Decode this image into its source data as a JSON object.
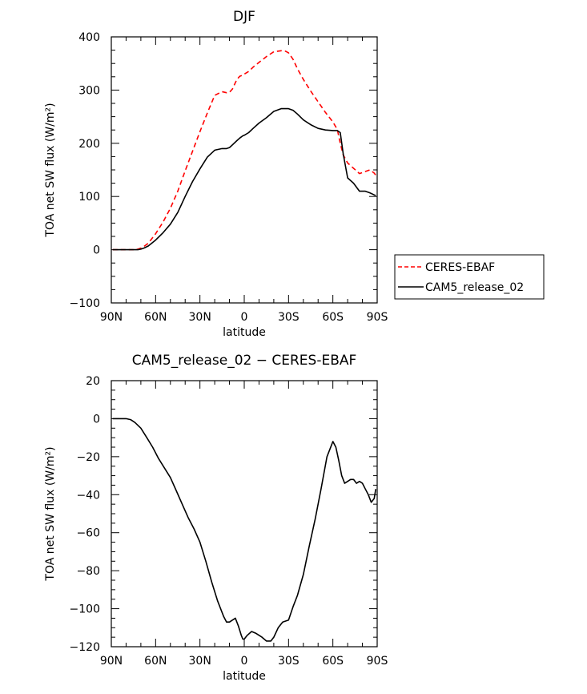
{
  "chart_data": [
    {
      "type": "line",
      "title": "DJF",
      "xlabel": "latitude",
      "ylabel": "TOA net SW flux (W/m²)",
      "xlim": [
        90,
        -90
      ],
      "ylim": [
        -100,
        400
      ],
      "xticks": [
        {
          "value": 90,
          "label": "90N"
        },
        {
          "value": 60,
          "label": "60N"
        },
        {
          "value": 30,
          "label": "30N"
        },
        {
          "value": 0,
          "label": "0"
        },
        {
          "value": -30,
          "label": "30S"
        },
        {
          "value": -60,
          "label": "60S"
        },
        {
          "value": -90,
          "label": "90S"
        }
      ],
      "yticks": [
        {
          "value": 400,
          "label": "400"
        },
        {
          "value": 300,
          "label": "300"
        },
        {
          "value": 200,
          "label": "200"
        },
        {
          "value": 100,
          "label": "100"
        },
        {
          "value": 0,
          "label": "0"
        },
        {
          "value": -100,
          "label": "−100"
        }
      ],
      "legend": {
        "placement": "right"
      },
      "series": [
        {
          "name": "CERES-EBAF",
          "color": "#ff0000",
          "dash": "dashed",
          "x": [
            89,
            85,
            80,
            75,
            72,
            70,
            68,
            65,
            60,
            55,
            50,
            45,
            40,
            35,
            30,
            25,
            20,
            15,
            12,
            10,
            8,
            5,
            3,
            1,
            0,
            -3,
            -6,
            -10,
            -15,
            -20,
            -25,
            -28,
            -30,
            -33,
            -36,
            -40,
            -45,
            -50,
            -55,
            -60,
            -63,
            -65,
            -67,
            -70,
            -74,
            -78,
            -82,
            -85,
            -88,
            -89
          ],
          "y": [
            0,
            0,
            0,
            0,
            1,
            3,
            6,
            12,
            30,
            52,
            78,
            110,
            148,
            185,
            222,
            257,
            290,
            297,
            295,
            296,
            302,
            320,
            326,
            328,
            330,
            335,
            343,
            352,
            363,
            372,
            374,
            373,
            370,
            358,
            340,
            320,
            298,
            278,
            258,
            240,
            226,
            200,
            178,
            163,
            153,
            143,
            147,
            150,
            144,
            140
          ]
        },
        {
          "name": "CAM5_release_02",
          "color": "#000000",
          "dash": "solid",
          "x": [
            89,
            85,
            80,
            75,
            72,
            70,
            68,
            65,
            60,
            55,
            50,
            45,
            40,
            35,
            30,
            25,
            20,
            15,
            12,
            10,
            8,
            5,
            3,
            1,
            0,
            -3,
            -6,
            -10,
            -15,
            -20,
            -25,
            -28,
            -30,
            -33,
            -36,
            -40,
            -45,
            -50,
            -55,
            -60,
            -63,
            -65,
            -67,
            -70,
            -74,
            -78,
            -82,
            -85,
            -88,
            -89
          ],
          "y": [
            0,
            0,
            0,
            0,
            0,
            1,
            3,
            7,
            18,
            32,
            48,
            70,
            100,
            128,
            152,
            174,
            187,
            190,
            190,
            192,
            197,
            205,
            210,
            214,
            215,
            220,
            228,
            238,
            248,
            260,
            265,
            265,
            265,
            262,
            255,
            244,
            235,
            228,
            225,
            224,
            224,
            220,
            180,
            135,
            125,
            110,
            110,
            107,
            103,
            102
          ]
        }
      ]
    },
    {
      "type": "line",
      "title": "CAM5_release_02 − CERES-EBAF",
      "xlabel": "latitude",
      "ylabel": "TOA net SW flux (W/m²)",
      "xlim": [
        90,
        -90
      ],
      "ylim": [
        -120,
        20
      ],
      "xticks": [
        {
          "value": 90,
          "label": "90N"
        },
        {
          "value": 60,
          "label": "60N"
        },
        {
          "value": 30,
          "label": "30N"
        },
        {
          "value": 0,
          "label": "0"
        },
        {
          "value": -30,
          "label": "30S"
        },
        {
          "value": -60,
          "label": "60S"
        },
        {
          "value": -90,
          "label": "90S"
        }
      ],
      "yticks": [
        {
          "value": 20,
          "label": "20"
        },
        {
          "value": 0,
          "label": "0"
        },
        {
          "value": -20,
          "label": "−20"
        },
        {
          "value": -40,
          "label": "−40"
        },
        {
          "value": -60,
          "label": "−60"
        },
        {
          "value": -80,
          "label": "−80"
        },
        {
          "value": -100,
          "label": "−100"
        },
        {
          "value": -120,
          "label": "−120"
        }
      ],
      "series": [
        {
          "name": "CAM5_release_02 − CERES-EBAF",
          "color": "#000000",
          "dash": "solid",
          "x": [
            89,
            85,
            80,
            77,
            74,
            70,
            66,
            62,
            58,
            54,
            50,
            46,
            42,
            38,
            34,
            30,
            26,
            22,
            18,
            14,
            12,
            10,
            8,
            6,
            4,
            2,
            1,
            0,
            -2,
            -5,
            -8,
            -12,
            -15,
            -18,
            -20,
            -23,
            -26,
            -30,
            -33,
            -36,
            -40,
            -44,
            -48,
            -52,
            -56,
            -60,
            -62,
            -64,
            -66,
            -68,
            -70,
            -72,
            -74,
            -76,
            -78,
            -80,
            -82,
            -84,
            -86,
            -88,
            -89
          ],
          "y": [
            0,
            0,
            0,
            -0.5,
            -2,
            -5,
            -10,
            -15,
            -21,
            -26,
            -31,
            -38,
            -45,
            -52,
            -58,
            -65,
            -75,
            -86,
            -96,
            -104,
            -107,
            -107,
            -106,
            -105,
            -109,
            -114,
            -116,
            -116,
            -114,
            -112,
            -113,
            -115,
            -117,
            -117,
            -115,
            -110,
            -107,
            -106,
            -99,
            -93,
            -82,
            -67,
            -53,
            -37,
            -20,
            -12,
            -15,
            -22,
            -30,
            -34,
            -33,
            -32,
            -32,
            -34,
            -33,
            -34,
            -37,
            -40,
            -44,
            -42,
            -37
          ]
        }
      ]
    }
  ]
}
